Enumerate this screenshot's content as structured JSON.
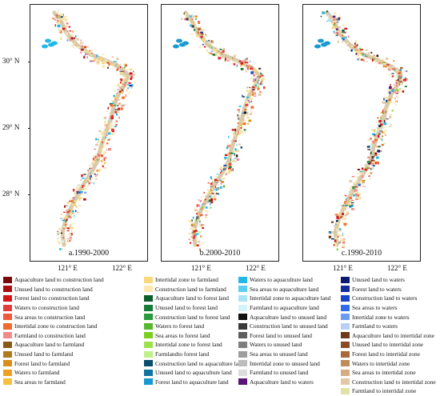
{
  "panels": [
    {
      "label": "a.1990-2000"
    },
    {
      "label": "b.2000-2010"
    },
    {
      "label": "c.1990-2010"
    }
  ],
  "lat_labels": [
    "30° N",
    "29° N",
    "28° N"
  ],
  "lon_labels": [
    "121° E",
    "122° E"
  ],
  "legend": [
    [
      {
        "label": "Aquaculture land to construction land",
        "color": "#7a0a0a"
      },
      {
        "label": "Unused land to construction land",
        "color": "#a80f0f"
      },
      {
        "label": "Forest land to construction land",
        "color": "#d31616"
      },
      {
        "label": "Waters to construction land",
        "color": "#e63b3b"
      },
      {
        "label": "Sea areas to construction land",
        "color": "#ee5a3a"
      },
      {
        "label": "Intertidal zone to construction land",
        "color": "#f06c2c"
      },
      {
        "label": "Farmland to construction land",
        "color": "#f28a8a"
      },
      {
        "label": "Aquaculture land to farmland",
        "color": "#8a5a14"
      },
      {
        "label": "Unused land to farmland",
        "color": "#b07a1c"
      },
      {
        "label": "Forest land to farmland",
        "color": "#d8901a"
      },
      {
        "label": "Waters to farmland",
        "color": "#f0a020"
      },
      {
        "label": "Sea areas to farmland",
        "color": "#f5c040"
      }
    ],
    [
      {
        "label": "Intertidal zone to farmland",
        "color": "#f8d87a"
      },
      {
        "label": "Construction land to farmland",
        "color": "#fbe9b0"
      },
      {
        "label": "Aquaculture land to forest land",
        "color": "#0b5e2e"
      },
      {
        "label": "Unused land to forest land",
        "color": "#167c38"
      },
      {
        "label": "Construction land to forest land",
        "color": "#2a9a3c"
      },
      {
        "label": "Waters to forest land",
        "color": "#56b82e"
      },
      {
        "label": "Sea areas to forest land",
        "color": "#7ccf22"
      },
      {
        "label": "Intertidal zone to forest land",
        "color": "#9de24c"
      },
      {
        "label": "Farmlandto forest land",
        "color": "#bff08a"
      },
      {
        "label": "Construction land to aquaculture land",
        "color": "#0a4e6e"
      },
      {
        "label": "Unused land to aquaculture land",
        "color": "#1272a0"
      },
      {
        "label": "Forest land to aquaculture land",
        "color": "#1a98d0"
      }
    ],
    [
      {
        "label": "Waters to aquaculture land",
        "color": "#22b8e8"
      },
      {
        "label": "Sea areas to aquaculture land",
        "color": "#5bcff0"
      },
      {
        "label": "Intertidal zone to aquaculture land",
        "color": "#a8e4f4"
      },
      {
        "label": "Farmland to aquaculture land",
        "color": "#d4f2fa"
      },
      {
        "label": "Aquaculture land to unused land",
        "color": "#111111"
      },
      {
        "label": "Construction land to unused land",
        "color": "#3a3a3a"
      },
      {
        "label": "Forest land to unused land",
        "color": "#5e5e5e"
      },
      {
        "label": "Waters to unused land",
        "color": "#7e7e7e"
      },
      {
        "label": "Sea areas to unused land",
        "color": "#9e9e9e"
      },
      {
        "label": "Intertidal zone to unused land",
        "color": "#bdbdbd"
      },
      {
        "label": "Farmland to unused land",
        "color": "#dcdcdc"
      },
      {
        "label": "Aquaculture land to waters",
        "color": "#5a1478"
      }
    ],
    [
      {
        "label": "Unused land to waters",
        "color": "#0a1a6e"
      },
      {
        "label": "Forest land to waters",
        "color": "#122c9a"
      },
      {
        "label": "Construction land to waters",
        "color": "#1a44c8"
      },
      {
        "label": "Sea areas to waters",
        "color": "#2f6ae8"
      },
      {
        "label": "Intertidal zone to waters",
        "color": "#6c9cf2"
      },
      {
        "label": "Farmland to waters",
        "color": "#b8cff8"
      },
      {
        "label": "Aquaculture land to intertidal zone",
        "color": "#6e3a1c"
      },
      {
        "label": "Unused land to intertidal zone",
        "color": "#8a4c28"
      },
      {
        "label": "Forest land to intertidal zone",
        "color": "#a86a3c"
      },
      {
        "label": "Waters to intertidal zone",
        "color": "#c08a5a"
      },
      {
        "label": "Sea areas to intertidal zone",
        "color": "#d4ac80"
      },
      {
        "label": "Construction land to intertidal zone",
        "color": "#e4c8a6"
      },
      {
        "label": "Farmland to intertidal zone",
        "color": "#e2e2a8"
      }
    ]
  ]
}
